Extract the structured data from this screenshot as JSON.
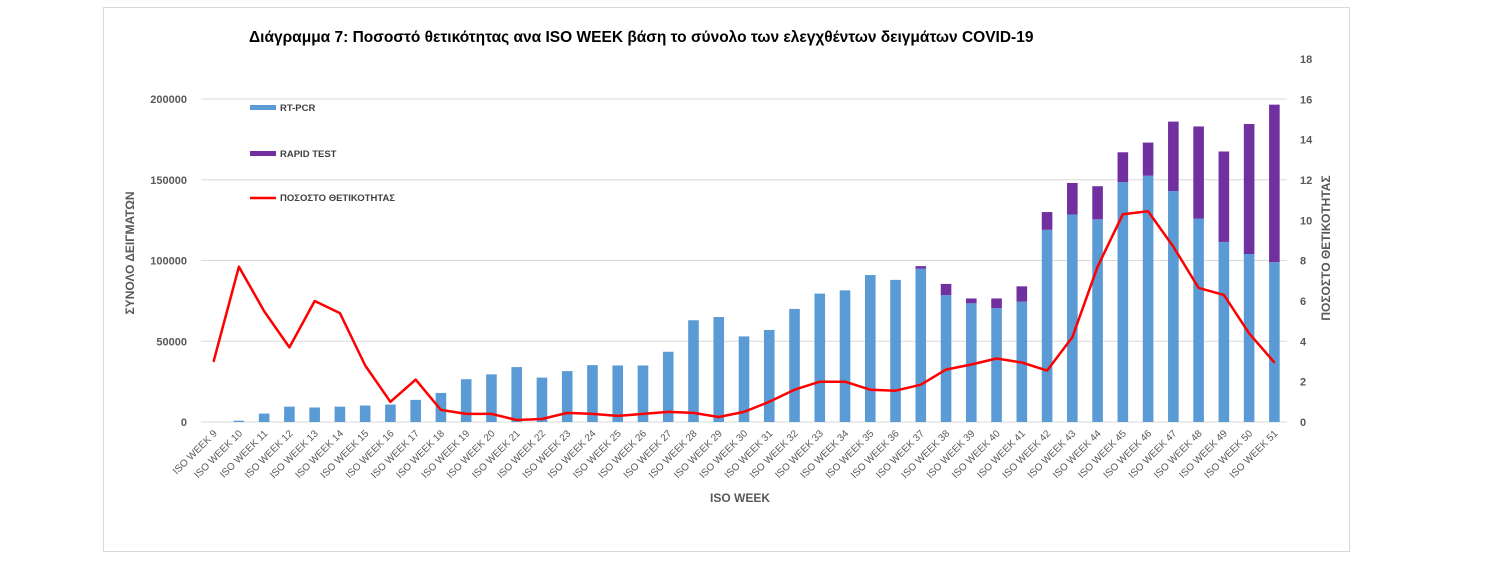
{
  "chart_data": {
    "type": "bar",
    "title": "Διάγραμμα 7: Ποσοστό θετικότητας ανα ISO WEEK  βάση το σύνολο των ελεγχθέντων δειγμάτων COVID-19",
    "xlabel": "ISO WEEK",
    "ylabel": "ΣΥΝΟΛΟ  ΔΕΙΓΜΑΤΩΝ",
    "y2label": "ΠΟΣΟΣΤΟ ΘΕΤΙΚΟΤΗΤΑΣ",
    "ylim": [
      0,
      200000
    ],
    "y2lim": [
      0,
      18
    ],
    "yticks": [
      "0",
      "50000",
      "100000",
      "150000",
      "200000"
    ],
    "y2ticks": [
      "0",
      "2",
      "4",
      "6",
      "8",
      "10",
      "12",
      "14",
      "16",
      "18"
    ],
    "grid": true,
    "stacked": true,
    "legend_position": "top-left",
    "categories": [
      "ISO WEEK 9",
      "ISO WEEK 10",
      "ISO WEEK 11",
      "ISO WEEK 12",
      "ISO WEEK 13",
      "ISO WEEK 14",
      "ISO WEEK 15",
      "ISO WEEK 16",
      "ISO WEEK 17",
      "ISO WEEK 18",
      "ISO WEEK 19",
      "ISO WEEK 20",
      "ISO WEEK 21",
      "ISO WEEK 22",
      "ISO WEEK 23",
      "ISO WEEK 24",
      "ISO WEEK 25",
      "ISO WEEK 26",
      "ISO WEEK 27",
      "ISO WEEK 28",
      "ISO WEEK 29",
      "ISO WEEK 30",
      "ISO WEEK 31",
      "ISO WEEK 32",
      "ISO WEEK 33",
      "ISO WEEK 34",
      "ISO WEEK 35",
      "ISO WEEK 36",
      "ISO WEEK 37",
      "ISO WEEK 38",
      "ISO WEEK 39",
      "ISO WEEK 40",
      "ISO WEEK 41",
      "ISO WEEK 42",
      "ISO WEEK 43",
      "ISO WEEK 44",
      "ISO WEEK 45",
      "ISO WEEK 46",
      "ISO WEEK 47",
      "ISO WEEK 48",
      "ISO WEEK 49",
      "ISO WEEK 50",
      "ISO WEEK 51"
    ],
    "series": [
      {
        "name": "RT-PCR",
        "kind": "bar",
        "axis": "left",
        "color": "#5b9bd5",
        "values": [
          0,
          800,
          5200,
          9500,
          9000,
          9500,
          10200,
          10800,
          13700,
          18000,
          26500,
          29500,
          34000,
          27500,
          31500,
          35200,
          35000,
          35000,
          43500,
          63000,
          65000,
          53000,
          57000,
          70000,
          79500,
          81500,
          91000,
          88000,
          95000,
          78500,
          73500,
          70500,
          74500,
          119000,
          128500,
          125500,
          148500,
          152500,
          143000,
          126000,
          111500,
          104000,
          99000
        ]
      },
      {
        "name": "RAPID TEST",
        "kind": "bar",
        "axis": "left",
        "color": "#7030a0",
        "values": [
          0,
          0,
          0,
          0,
          0,
          0,
          0,
          0,
          0,
          0,
          0,
          0,
          0,
          0,
          0,
          0,
          0,
          0,
          0,
          0,
          0,
          0,
          0,
          0,
          0,
          0,
          0,
          0,
          1500,
          7000,
          3000,
          6000,
          9500,
          11000,
          19500,
          20500,
          18500,
          20500,
          43000,
          57000,
          56000,
          80500,
          97500
        ]
      },
      {
        "name": "ΠΟΣΟΣΤΟ ΘΕΤΙΚΟΤΗΤΑΣ",
        "kind": "line",
        "axis": "right",
        "color": "#ff0000",
        "values": [
          3.0,
          7.7,
          5.5,
          3.7,
          6.0,
          5.4,
          2.8,
          1.0,
          2.1,
          0.6,
          0.4,
          0.4,
          0.1,
          0.15,
          0.45,
          0.4,
          0.3,
          0.4,
          0.5,
          0.45,
          0.25,
          0.5,
          1.0,
          1.6,
          2.0,
          2.0,
          1.6,
          1.55,
          1.85,
          2.6,
          2.85,
          3.15,
          2.95,
          2.55,
          4.2,
          7.7,
          10.3,
          10.45,
          8.7,
          6.65,
          6.3,
          4.4,
          2.95
        ]
      }
    ]
  }
}
